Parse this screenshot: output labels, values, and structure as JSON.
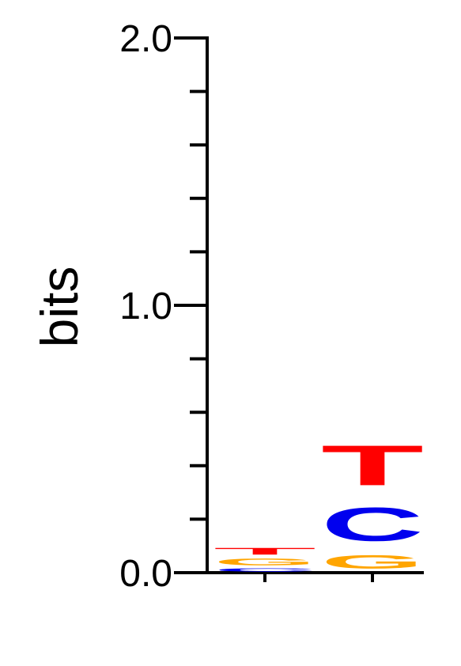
{
  "chart_data": {
    "type": "sequence-logo",
    "ylabel": "bits",
    "ylim": [
      0,
      2
    ],
    "major_ticks": [
      {
        "value": 0,
        "label": "0.0"
      },
      {
        "value": 1,
        "label": "1.0"
      },
      {
        "value": 2,
        "label": "2.0"
      }
    ],
    "minor_tick_step": 0.2,
    "colors": {
      "A": "#00a000",
      "C": "#0000ee",
      "G": "#ffa500",
      "T": "#ff0000"
    },
    "positions": [
      {
        "index": 1,
        "letters": [
          {
            "letter": "C",
            "bits": 0.02
          },
          {
            "letter": "G",
            "bits": 0.04
          },
          {
            "letter": "T",
            "bits": 0.04
          }
        ]
      },
      {
        "index": 2,
        "letters": [
          {
            "letter": "G",
            "bits": 0.08
          },
          {
            "letter": "C",
            "bits": 0.2
          },
          {
            "letter": "T",
            "bits": 0.24
          }
        ]
      }
    ]
  }
}
